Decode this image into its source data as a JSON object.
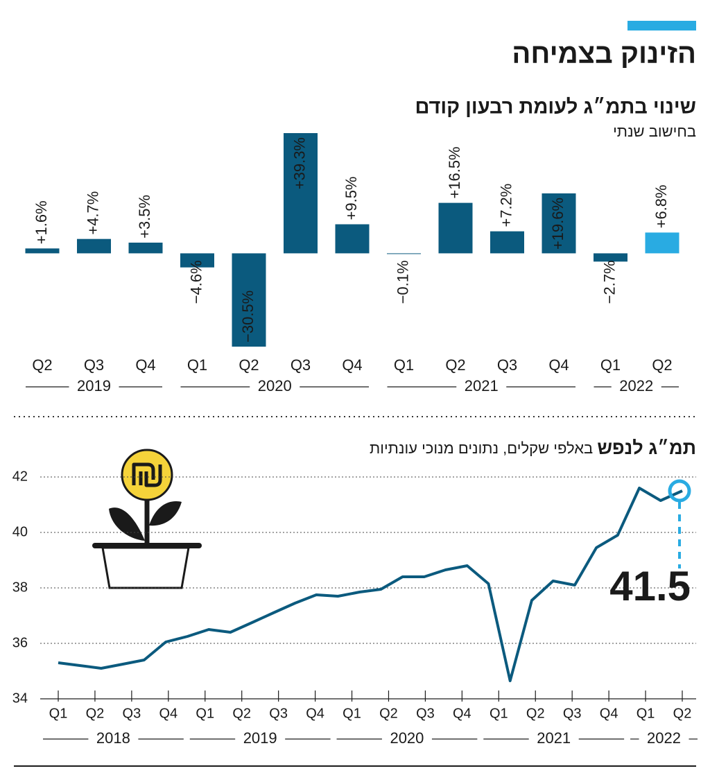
{
  "header": {
    "title": "הזינוק בצמיחה"
  },
  "chart_data": [
    {
      "type": "bar",
      "title": "שינוי בתמ״ג לעומת רבעון קודם",
      "subtitle": "בחישוב שנתי",
      "groups": [
        {
          "label": "2019",
          "categories": [
            "Q2",
            "Q3",
            "Q4"
          ]
        },
        {
          "label": "2020",
          "categories": [
            "Q1",
            "Q2",
            "Q3",
            "Q4"
          ]
        },
        {
          "label": "2021",
          "categories": [
            "Q1",
            "Q2",
            "Q3",
            "Q4"
          ]
        },
        {
          "label": "2022",
          "categories": [
            "Q1",
            "Q2"
          ]
        }
      ],
      "values": [
        1.6,
        4.7,
        3.5,
        -4.6,
        -30.5,
        39.3,
        9.5,
        -0.1,
        16.5,
        7.2,
        19.6,
        -2.7,
        6.8
      ],
      "value_labels": [
        "+1.6%",
        "+4.7%",
        "+3.5%",
        "−4.6%",
        "−30.5%",
        "+39.3%",
        "+9.5%",
        "−0.1%",
        "+16.5%",
        "+7.2%",
        "+19.6%",
        "−2.7%",
        "+6.8%"
      ],
      "colors": [
        "#0b5a7e",
        "#0b5a7e",
        "#0b5a7e",
        "#0b5a7e",
        "#0b5a7e",
        "#0b5a7e",
        "#0b5a7e",
        "#0b5a7e",
        "#0b5a7e",
        "#0b5a7e",
        "#0b5a7e",
        "#0b5a7e",
        "#29abe2"
      ]
    },
    {
      "type": "line",
      "title": "תמ״ג לנפש",
      "subtitle": "באלפי שקלים, נתונים מנוכי עונתיות",
      "x": [
        0,
        0.59,
        1.17,
        1.76,
        2.34,
        2.93,
        3.52,
        4.1,
        4.69,
        5.28,
        5.86,
        6.45,
        7.03,
        7.62,
        8.21,
        8.79,
        9.38,
        9.97,
        10.55,
        11.14,
        11.72,
        12.31,
        12.9,
        13.48,
        14.07,
        14.66,
        15.24,
        15.83,
        16.41,
        17
      ],
      "values": [
        35.3,
        35.2,
        35.1,
        35.25,
        35.4,
        36.05,
        36.25,
        36.5,
        36.4,
        36.75,
        37.1,
        37.45,
        37.75,
        37.7,
        37.85,
        37.95,
        38.4,
        38.4,
        38.65,
        38.8,
        38.15,
        34.65,
        37.55,
        38.25,
        38.1,
        39.45,
        39.9,
        41.6,
        41.15,
        41.5
      ],
      "color": "#0b5a7e",
      "xlim": [
        0,
        17
      ],
      "xticks": [
        {
          "value": 0,
          "label": "Q1"
        },
        {
          "value": 1,
          "label": "Q2"
        },
        {
          "value": 2,
          "label": "Q3"
        },
        {
          "value": 3,
          "label": "Q4"
        },
        {
          "value": 4,
          "label": "Q1"
        },
        {
          "value": 5,
          "label": "Q2"
        },
        {
          "value": 6,
          "label": "Q3"
        },
        {
          "value": 7,
          "label": "Q4"
        },
        {
          "value": 8,
          "label": "Q1"
        },
        {
          "value": 9,
          "label": "Q2"
        },
        {
          "value": 10,
          "label": "Q3"
        },
        {
          "value": 11,
          "label": "Q4"
        },
        {
          "value": 12,
          "label": "Q1"
        },
        {
          "value": 13,
          "label": "Q2"
        },
        {
          "value": 14,
          "label": "Q3"
        },
        {
          "value": 15,
          "label": "Q4"
        },
        {
          "value": 16,
          "label": "Q1"
        },
        {
          "value": 17,
          "label": "Q2"
        }
      ],
      "x_groups": [
        {
          "label": "2018",
          "range": [
            0,
            3
          ]
        },
        {
          "label": "2019",
          "range": [
            4,
            7
          ]
        },
        {
          "label": "2020",
          "range": [
            8,
            11
          ]
        },
        {
          "label": "2021",
          "range": [
            12,
            15
          ]
        },
        {
          "label": "2022",
          "range": [
            16,
            17
          ]
        }
      ],
      "ylim": [
        34,
        42
      ],
      "yticks": [
        34,
        36,
        38,
        40,
        42
      ],
      "grid": true,
      "annotation": "41.5",
      "annotation_color": "#29abe2"
    }
  ]
}
